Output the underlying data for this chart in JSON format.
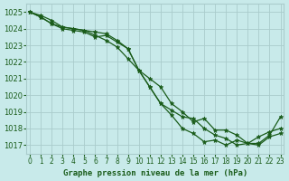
{
  "title": "Graphe pression niveau de la mer (hPa)",
  "bg_color": "#c8eaea",
  "grid_color": "#aacccc",
  "line_color": "#1a5c1a",
  "marker_color": "#1a5c1a",
  "xlabel_color": "#1a5c1a",
  "xlim": [
    0,
    23
  ],
  "ylim": [
    1016.5,
    1025.5
  ],
  "yticks": [
    1017,
    1018,
    1019,
    1020,
    1021,
    1022,
    1023,
    1024,
    1025
  ],
  "xticks": [
    0,
    1,
    2,
    3,
    4,
    5,
    6,
    7,
    8,
    9,
    10,
    11,
    12,
    13,
    14,
    15,
    16,
    17,
    18,
    19,
    20,
    21,
    22,
    23
  ],
  "series": [
    [
      1025.0,
      1024.8,
      1024.5,
      1024.1,
      1024.0,
      1023.9,
      1023.8,
      1023.7,
      1023.3,
      1022.8,
      1021.5,
      1020.5,
      1019.5,
      1019.1,
      1018.7,
      1018.6,
      1018.0,
      1017.6,
      1017.4,
      1017.0,
      1017.1,
      1017.0,
      1017.5,
      1017.7
    ],
    [
      1025.0,
      1024.7,
      1024.3,
      1024.0,
      1023.9,
      1023.8,
      1023.5,
      1023.6,
      1023.2,
      1022.8,
      1021.5,
      1020.5,
      1019.5,
      1018.8,
      1018.0,
      1017.7,
      1017.2,
      1017.3,
      1017.0,
      1017.3,
      1017.1,
      1017.5,
      1017.8,
      1018.0
    ],
    [
      1025.0,
      1024.7,
      1024.3,
      1024.1,
      1024.0,
      1023.9,
      1023.6,
      1023.3,
      1022.9,
      1022.2,
      1021.5,
      1021.0,
      1020.5,
      1019.5,
      1019.0,
      1018.4,
      1018.6,
      1017.9,
      1017.9,
      1017.6,
      1017.1,
      1017.1,
      1017.6,
      1018.7
    ]
  ]
}
